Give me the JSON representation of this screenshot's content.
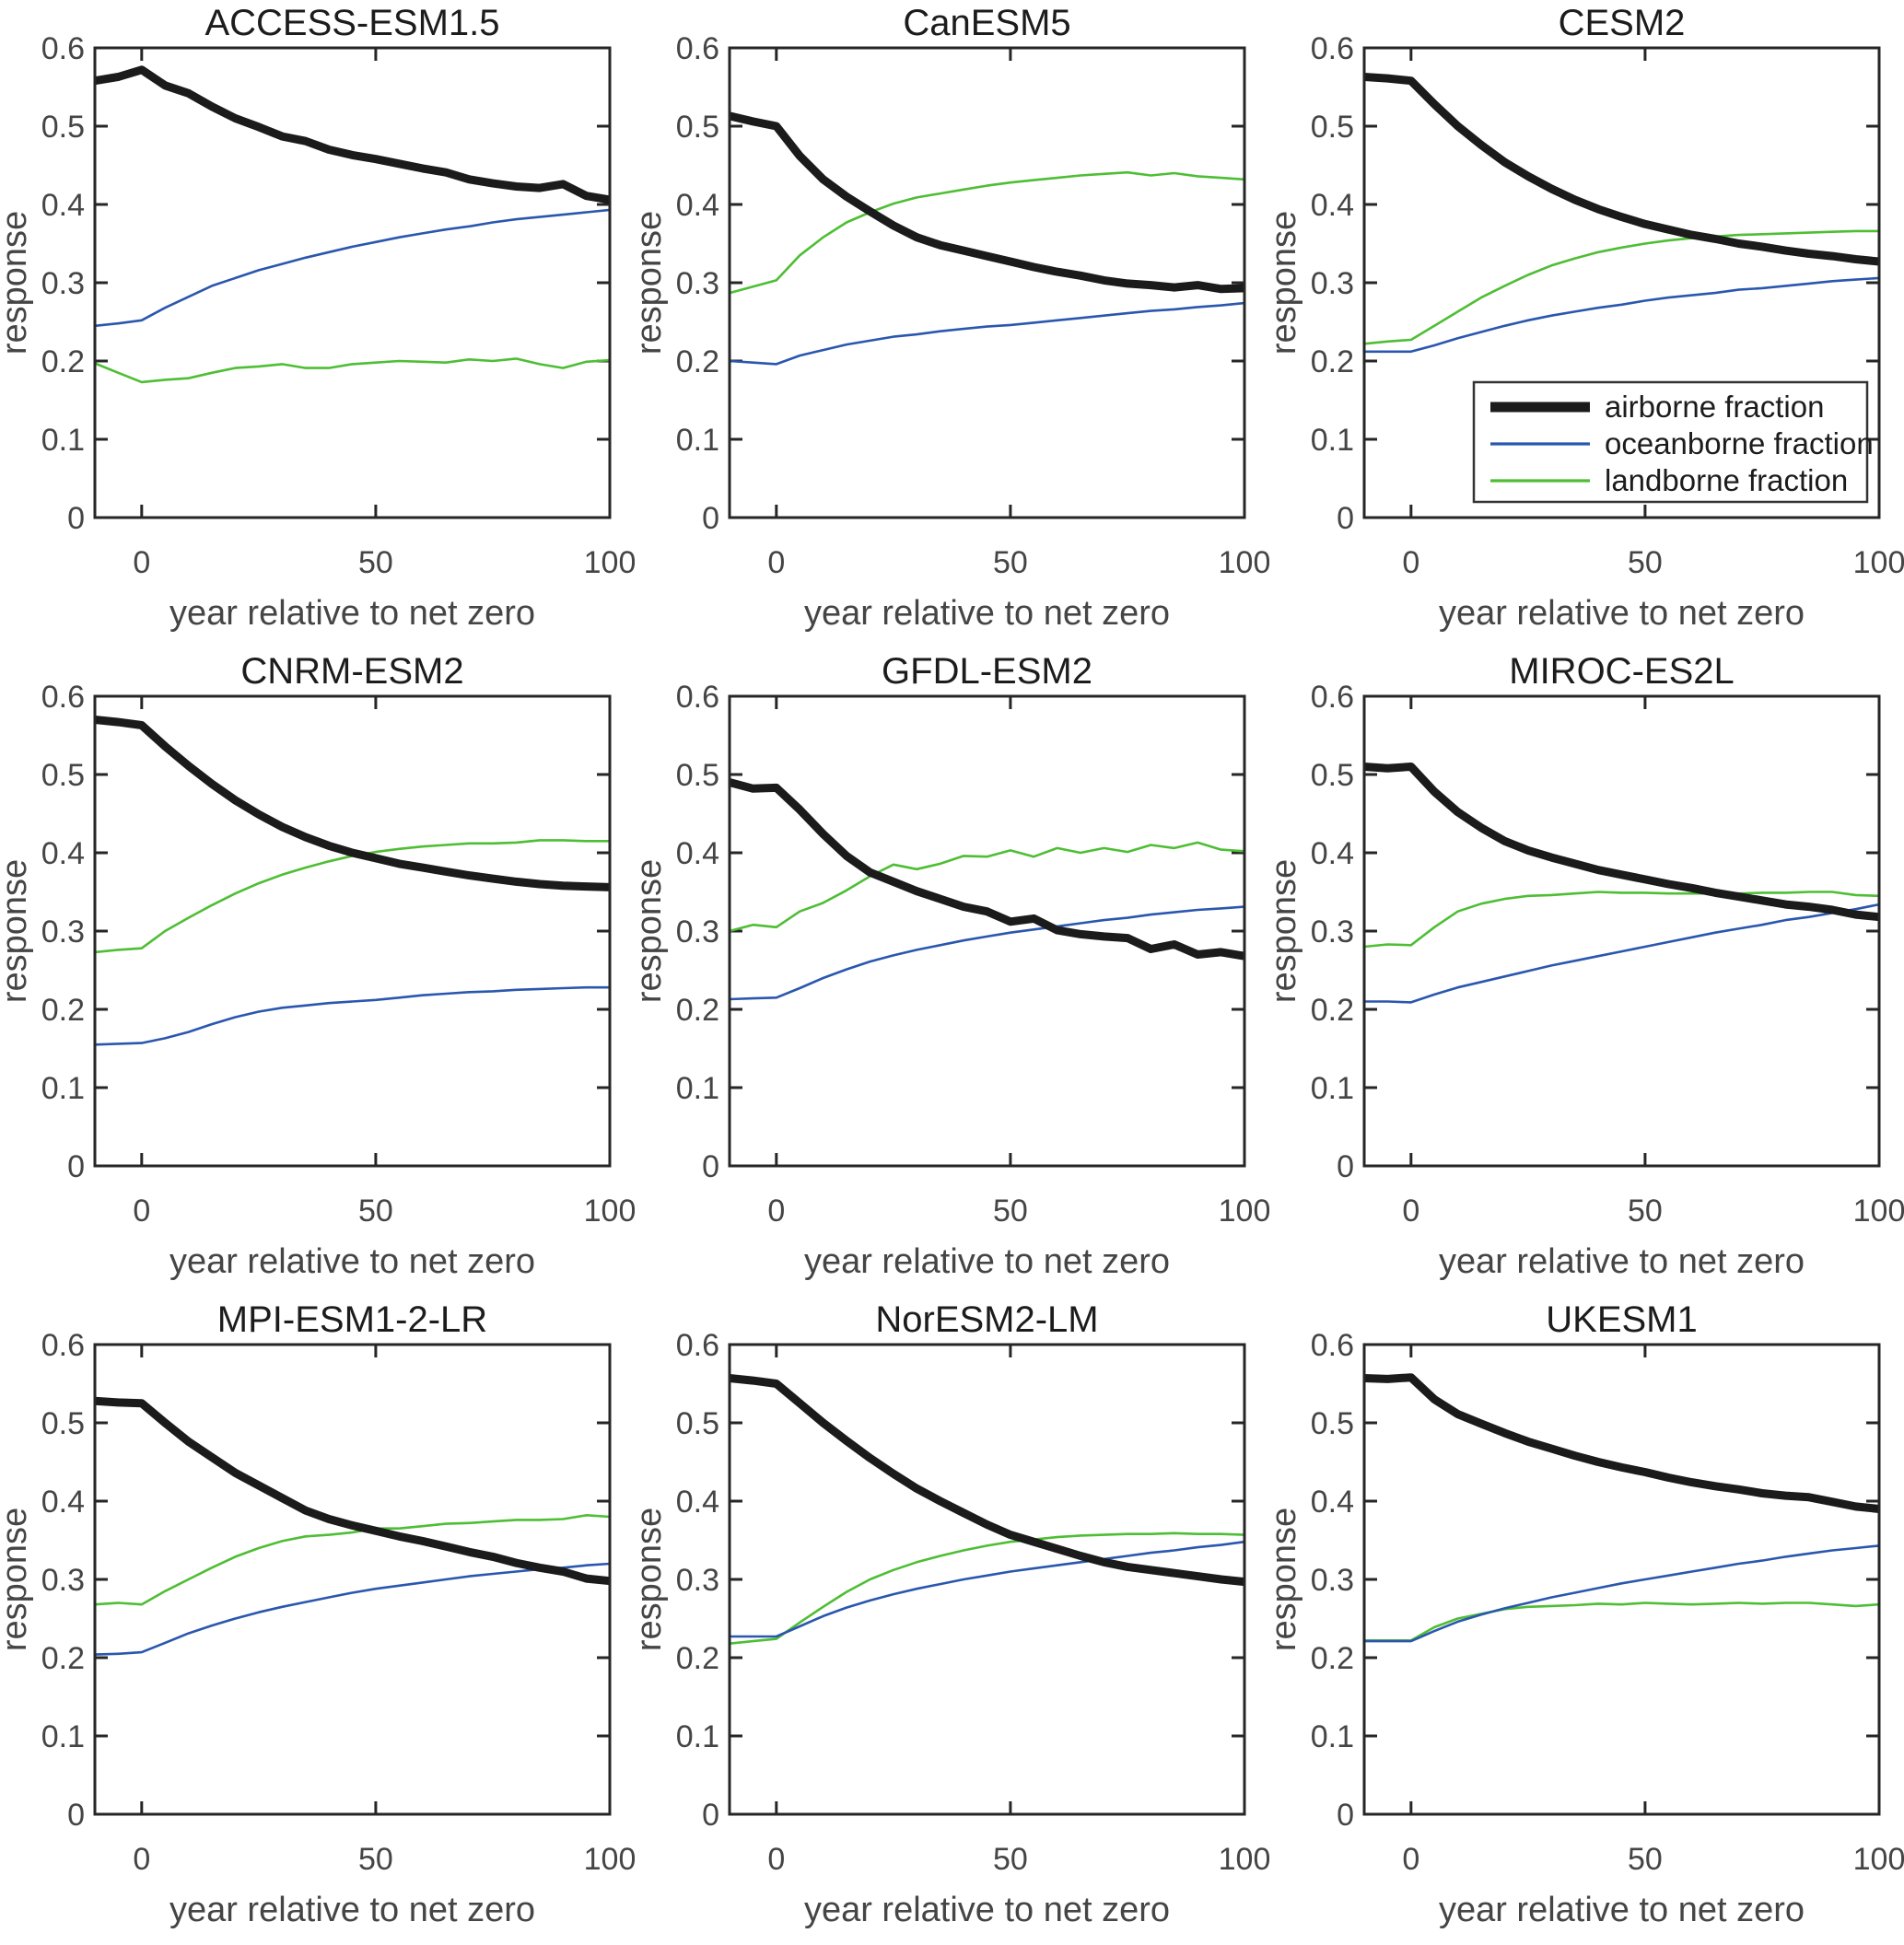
{
  "chart_data": {
    "type": "line",
    "xlabel": "year relative to net zero",
    "ylabel": "response",
    "xlim": [
      -10,
      100
    ],
    "ylim": [
      0,
      0.6
    ],
    "x_ticks": [
      0,
      50,
      100
    ],
    "y_ticks": [
      0,
      0.1,
      0.2,
      0.3,
      0.4,
      0.5,
      0.6
    ],
    "grid": false,
    "axis_color": "#262626",
    "legend": {
      "position": "lower-right-of-CESM2-panel",
      "entries": [
        {
          "key": "airborne",
          "label": "airborne fraction",
          "color": "#1b1b1b",
          "width": 9
        },
        {
          "key": "oceanborne",
          "label": "oceanborne fraction",
          "color": "#2a57ae",
          "width": 2.6
        },
        {
          "key": "landborne",
          "label": "landborne fraction",
          "color": "#4ebe34",
          "width": 2.6
        }
      ]
    },
    "x": [
      -10,
      -5,
      0,
      5,
      10,
      15,
      20,
      25,
      30,
      35,
      40,
      45,
      50,
      55,
      60,
      65,
      70,
      75,
      80,
      85,
      90,
      95,
      100
    ],
    "panels": [
      {
        "title": "ACCESS-ESM1.5",
        "show_legend": false,
        "airborne": [
          0.558,
          0.563,
          0.572,
          0.552,
          0.542,
          0.525,
          0.51,
          0.499,
          0.487,
          0.481,
          0.47,
          0.463,
          0.458,
          0.452,
          0.446,
          0.441,
          0.432,
          0.427,
          0.423,
          0.421,
          0.426,
          0.411,
          0.406
        ],
        "oceanborne": [
          0.245,
          0.248,
          0.252,
          0.268,
          0.282,
          0.296,
          0.306,
          0.316,
          0.324,
          0.332,
          0.339,
          0.346,
          0.352,
          0.358,
          0.363,
          0.368,
          0.372,
          0.377,
          0.381,
          0.384,
          0.387,
          0.39,
          0.393
        ],
        "landborne": [
          0.197,
          0.185,
          0.173,
          0.176,
          0.178,
          0.185,
          0.191,
          0.193,
          0.196,
          0.191,
          0.191,
          0.196,
          0.198,
          0.2,
          0.199,
          0.198,
          0.202,
          0.2,
          0.203,
          0.196,
          0.191,
          0.199,
          0.201
        ]
      },
      {
        "title": "CanESM5",
        "show_legend": false,
        "airborne": [
          0.513,
          0.506,
          0.5,
          0.462,
          0.432,
          0.41,
          0.391,
          0.373,
          0.358,
          0.348,
          0.341,
          0.334,
          0.327,
          0.32,
          0.314,
          0.309,
          0.303,
          0.299,
          0.297,
          0.294,
          0.297,
          0.292,
          0.293
        ],
        "oceanborne": [
          0.2,
          0.198,
          0.196,
          0.207,
          0.214,
          0.221,
          0.226,
          0.231,
          0.234,
          0.238,
          0.241,
          0.244,
          0.246,
          0.249,
          0.252,
          0.255,
          0.258,
          0.261,
          0.264,
          0.266,
          0.269,
          0.271,
          0.274
        ],
        "landborne": [
          0.287,
          0.295,
          0.303,
          0.335,
          0.358,
          0.377,
          0.39,
          0.401,
          0.409,
          0.414,
          0.419,
          0.424,
          0.428,
          0.431,
          0.434,
          0.437,
          0.439,
          0.441,
          0.437,
          0.44,
          0.436,
          0.434,
          0.432
        ]
      },
      {
        "title": "CESM2",
        "show_legend": true,
        "airborne": [
          0.563,
          0.561,
          0.558,
          0.528,
          0.5,
          0.476,
          0.454,
          0.436,
          0.42,
          0.406,
          0.394,
          0.384,
          0.375,
          0.368,
          0.361,
          0.356,
          0.35,
          0.346,
          0.341,
          0.337,
          0.334,
          0.33,
          0.327
        ],
        "oceanborne": [
          0.212,
          0.212,
          0.212,
          0.22,
          0.229,
          0.237,
          0.245,
          0.252,
          0.258,
          0.263,
          0.268,
          0.272,
          0.277,
          0.281,
          0.284,
          0.287,
          0.291,
          0.293,
          0.296,
          0.299,
          0.302,
          0.304,
          0.306
        ],
        "landborne": [
          0.222,
          0.225,
          0.227,
          0.245,
          0.263,
          0.281,
          0.296,
          0.31,
          0.322,
          0.331,
          0.339,
          0.345,
          0.35,
          0.354,
          0.357,
          0.359,
          0.361,
          0.362,
          0.363,
          0.364,
          0.365,
          0.366,
          0.366
        ]
      },
      {
        "title": "CNRM-ESM2",
        "show_legend": false,
        "airborne": [
          0.57,
          0.567,
          0.563,
          0.536,
          0.511,
          0.488,
          0.467,
          0.449,
          0.433,
          0.42,
          0.409,
          0.4,
          0.393,
          0.386,
          0.381,
          0.376,
          0.371,
          0.367,
          0.363,
          0.36,
          0.358,
          0.357,
          0.356
        ],
        "oceanborne": [
          0.155,
          0.156,
          0.157,
          0.163,
          0.171,
          0.181,
          0.19,
          0.197,
          0.202,
          0.205,
          0.208,
          0.21,
          0.212,
          0.215,
          0.218,
          0.22,
          0.222,
          0.223,
          0.225,
          0.226,
          0.227,
          0.228,
          0.228
        ],
        "landborne": [
          0.273,
          0.276,
          0.278,
          0.3,
          0.317,
          0.333,
          0.348,
          0.361,
          0.372,
          0.381,
          0.389,
          0.396,
          0.401,
          0.405,
          0.408,
          0.41,
          0.412,
          0.412,
          0.413,
          0.416,
          0.416,
          0.415,
          0.415
        ]
      },
      {
        "title": "GFDL-ESM2",
        "show_legend": false,
        "airborne": [
          0.49,
          0.482,
          0.483,
          0.455,
          0.424,
          0.396,
          0.375,
          0.363,
          0.351,
          0.341,
          0.331,
          0.325,
          0.312,
          0.316,
          0.301,
          0.296,
          0.293,
          0.291,
          0.277,
          0.283,
          0.27,
          0.273,
          0.268
        ],
        "oceanborne": [
          0.213,
          0.214,
          0.215,
          0.227,
          0.24,
          0.251,
          0.261,
          0.269,
          0.276,
          0.282,
          0.288,
          0.293,
          0.298,
          0.302,
          0.306,
          0.31,
          0.314,
          0.317,
          0.321,
          0.324,
          0.327,
          0.329,
          0.331
        ],
        "landborne": [
          0.3,
          0.308,
          0.305,
          0.325,
          0.336,
          0.352,
          0.37,
          0.385,
          0.379,
          0.386,
          0.396,
          0.395,
          0.403,
          0.395,
          0.406,
          0.4,
          0.406,
          0.401,
          0.41,
          0.406,
          0.413,
          0.404,
          0.402
        ]
      },
      {
        "title": "MIROC-ES2L",
        "show_legend": false,
        "airborne": [
          0.51,
          0.508,
          0.51,
          0.478,
          0.452,
          0.432,
          0.415,
          0.403,
          0.394,
          0.386,
          0.378,
          0.372,
          0.366,
          0.36,
          0.355,
          0.349,
          0.344,
          0.339,
          0.334,
          0.331,
          0.327,
          0.321,
          0.318
        ],
        "oceanborne": [
          0.21,
          0.21,
          0.209,
          0.219,
          0.228,
          0.235,
          0.242,
          0.249,
          0.256,
          0.262,
          0.268,
          0.274,
          0.28,
          0.286,
          0.292,
          0.298,
          0.303,
          0.308,
          0.314,
          0.318,
          0.323,
          0.328,
          0.334
        ],
        "landborne": [
          0.28,
          0.283,
          0.282,
          0.305,
          0.325,
          0.335,
          0.341,
          0.345,
          0.346,
          0.348,
          0.35,
          0.349,
          0.349,
          0.348,
          0.348,
          0.348,
          0.348,
          0.349,
          0.349,
          0.35,
          0.35,
          0.346,
          0.345
        ]
      },
      {
        "title": "MPI-ESM1-2-LR",
        "show_legend": false,
        "airborne": [
          0.528,
          0.526,
          0.525,
          0.5,
          0.476,
          0.456,
          0.436,
          0.42,
          0.404,
          0.388,
          0.377,
          0.369,
          0.362,
          0.355,
          0.349,
          0.342,
          0.335,
          0.329,
          0.321,
          0.315,
          0.31,
          0.301,
          0.298
        ],
        "oceanborne": [
          0.204,
          0.205,
          0.207,
          0.219,
          0.231,
          0.241,
          0.25,
          0.258,
          0.265,
          0.271,
          0.277,
          0.283,
          0.288,
          0.292,
          0.296,
          0.3,
          0.304,
          0.307,
          0.31,
          0.313,
          0.315,
          0.318,
          0.32
        ],
        "landborne": [
          0.268,
          0.27,
          0.268,
          0.285,
          0.3,
          0.315,
          0.329,
          0.34,
          0.349,
          0.355,
          0.357,
          0.36,
          0.365,
          0.365,
          0.368,
          0.371,
          0.372,
          0.374,
          0.376,
          0.376,
          0.377,
          0.382,
          0.38
        ]
      },
      {
        "title": "NorESM2-LM",
        "show_legend": false,
        "airborne": [
          0.557,
          0.554,
          0.55,
          0.525,
          0.5,
          0.477,
          0.455,
          0.435,
          0.416,
          0.4,
          0.385,
          0.37,
          0.357,
          0.348,
          0.339,
          0.33,
          0.322,
          0.316,
          0.312,
          0.308,
          0.304,
          0.3,
          0.297
        ],
        "oceanborne": [
          0.227,
          0.227,
          0.227,
          0.24,
          0.253,
          0.264,
          0.273,
          0.281,
          0.288,
          0.294,
          0.3,
          0.305,
          0.31,
          0.314,
          0.318,
          0.322,
          0.326,
          0.33,
          0.334,
          0.337,
          0.341,
          0.344,
          0.348
        ],
        "landborne": [
          0.218,
          0.221,
          0.224,
          0.245,
          0.265,
          0.284,
          0.3,
          0.312,
          0.322,
          0.33,
          0.337,
          0.343,
          0.348,
          0.351,
          0.354,
          0.356,
          0.357,
          0.358,
          0.358,
          0.359,
          0.358,
          0.358,
          0.357
        ]
      },
      {
        "title": "UKESM1",
        "show_legend": false,
        "airborne": [
          0.557,
          0.556,
          0.558,
          0.53,
          0.511,
          0.499,
          0.487,
          0.476,
          0.467,
          0.458,
          0.45,
          0.443,
          0.437,
          0.43,
          0.424,
          0.419,
          0.415,
          0.41,
          0.407,
          0.405,
          0.399,
          0.393,
          0.39
        ],
        "oceanborne": [
          0.221,
          0.221,
          0.221,
          0.234,
          0.246,
          0.255,
          0.263,
          0.27,
          0.277,
          0.283,
          0.289,
          0.295,
          0.3,
          0.305,
          0.31,
          0.315,
          0.32,
          0.324,
          0.329,
          0.333,
          0.337,
          0.34,
          0.343
        ],
        "landborne": [
          0.222,
          0.222,
          0.222,
          0.239,
          0.25,
          0.256,
          0.262,
          0.265,
          0.266,
          0.267,
          0.269,
          0.268,
          0.27,
          0.269,
          0.268,
          0.269,
          0.27,
          0.269,
          0.27,
          0.27,
          0.268,
          0.266,
          0.268
        ]
      }
    ]
  }
}
